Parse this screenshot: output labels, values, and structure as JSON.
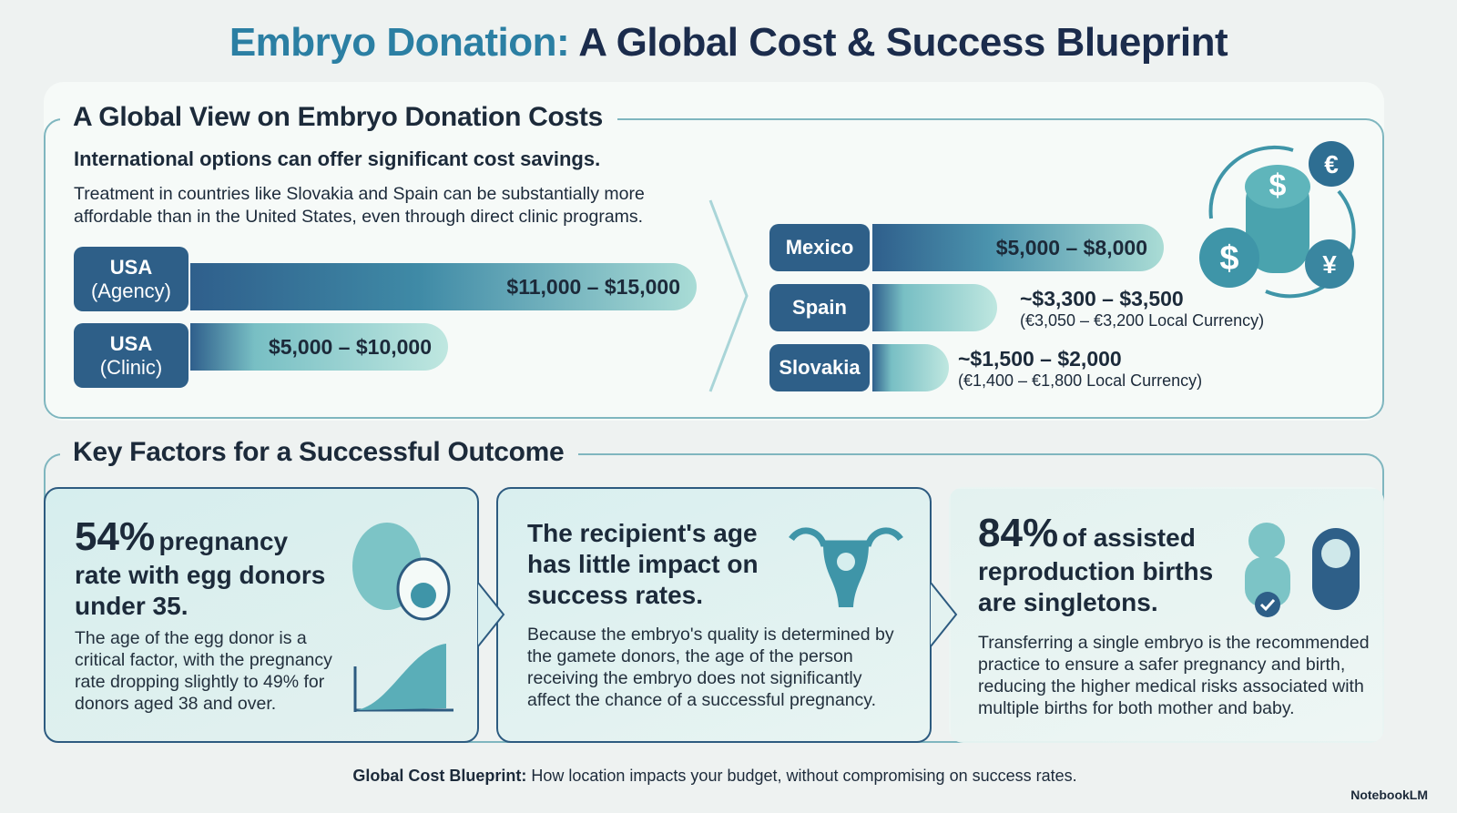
{
  "header": {
    "title_accent": "Embryo Donation:",
    "title_main": "A Global Cost & Success Blueprint"
  },
  "costs": {
    "heading": "A Global View on Embryo Donation Costs",
    "subheading": "International options can offer significant cost savings.",
    "description": "Treatment in countries like Slovakia and Spain can be substantially more affordable than in the United States, even through direct clinic programs.",
    "usa": [
      {
        "label": "USA",
        "sublabel": "(Agency)",
        "range": "$11,000 – $15,000"
      },
      {
        "label": "USA",
        "sublabel": "(Clinic)",
        "range": "$5,000 – $10,000"
      }
    ],
    "international": [
      {
        "country": "Mexico",
        "range": "$5,000 – $8,000"
      },
      {
        "country": "Spain",
        "range": "~$3,300 – $3,500",
        "local": "(€3,050 – €3,200 Local Currency)"
      },
      {
        "country": "Slovakia",
        "range": "~$1,500 – $2,000",
        "local": "(€1,400 – €1,800 Local Currency)"
      }
    ]
  },
  "factors": {
    "heading": "Key Factors for a Successful Outcome",
    "cards": [
      {
        "stat": "54%",
        "headline": "pregnancy rate with egg donors under 35.",
        "body": "The age of the egg donor is a critical factor, with the pregnancy rate dropping slightly to 49% for donors aged 38 and over."
      },
      {
        "headline": "The recipient's age has little impact on success rates.",
        "body": "Because the embryo's quality is determined by the gamete donors, the age of the person receiving the embryo does not significantly affect the chance of a successful pregnancy."
      },
      {
        "stat": "84%",
        "headline": "of assisted reproduction births are singletons.",
        "body": "Transferring a single embryo is the recommended practice to ensure a safer pregnancy and birth, reducing the higher medical risks associated with multiple births for both mother and baby."
      }
    ]
  },
  "footer": {
    "lead": "Global Cost Blueprint:",
    "text": "How location impacts your budget, without compromising on success rates.",
    "brand": "NotebookLM"
  }
}
